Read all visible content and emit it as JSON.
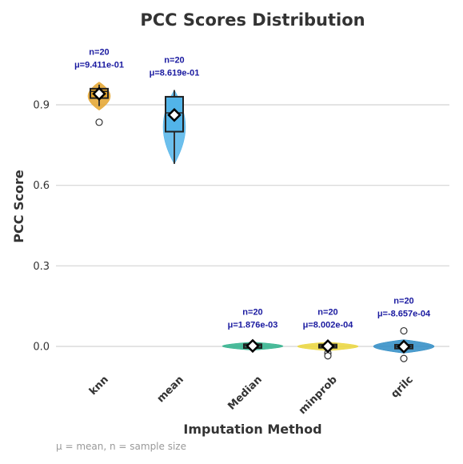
{
  "chart_data": {
    "type": "violin-box",
    "title": "PCC Scores Distribution",
    "xlabel": "Imputation Method",
    "ylabel": "PCC Score",
    "ylim": [
      -0.06,
      1.0
    ],
    "yticks": [
      0.0,
      0.3,
      0.6,
      0.9
    ],
    "ytick_labels": [
      "0.0",
      "0.3",
      "0.6",
      "0.9"
    ],
    "grid": "horizontal",
    "categories": [
      "knn",
      "mean",
      "Median",
      "minprob",
      "qrilc"
    ],
    "series": [
      {
        "category": "knn",
        "color": "#E4A32B",
        "n_label": "n=20",
        "mean_label": "μ=9.411e-01",
        "mean": 0.9411,
        "median": 0.95,
        "q1": 0.925,
        "q3": 0.96,
        "whisker_low": 0.895,
        "whisker_high": 0.975,
        "violin_min": 0.88,
        "violin_max": 0.985,
        "outliers": [
          0.835
        ]
      },
      {
        "category": "mean",
        "color": "#52B4E9",
        "n_label": "n=20",
        "mean_label": "μ=8.619e-01",
        "mean": 0.8619,
        "median": 0.87,
        "q1": 0.8,
        "q3": 0.93,
        "whisker_low": 0.68,
        "whisker_high": 0.955,
        "violin_min": 0.68,
        "violin_max": 0.955,
        "outliers": []
      },
      {
        "category": "Median",
        "color": "#2BB08A",
        "n_label": "n=20",
        "mean_label": "μ=1.876e-03",
        "mean": 0.001876,
        "median": 0.002,
        "q1": -0.006,
        "q3": 0.008,
        "whisker_low": -0.01,
        "whisker_high": 0.012,
        "violin_min": -0.014,
        "violin_max": 0.016,
        "outliers": []
      },
      {
        "category": "minprob",
        "color": "#EBD63A",
        "n_label": "n=20",
        "mean_label": "μ=8.002e-04",
        "mean": 0.0008,
        "median": 0.001,
        "q1": -0.005,
        "q3": 0.007,
        "whisker_low": -0.012,
        "whisker_high": 0.012,
        "violin_min": -0.016,
        "violin_max": 0.016,
        "outliers": [
          -0.025,
          -0.035
        ]
      },
      {
        "category": "qrilc",
        "color": "#2D8BC4",
        "n_label": "n=20",
        "mean_label": "μ=-8.657e-04",
        "mean": -0.000866,
        "median": -0.001,
        "q1": -0.008,
        "q3": 0.006,
        "whisker_low": -0.015,
        "whisker_high": 0.015,
        "violin_min": -0.025,
        "violin_max": 0.025,
        "outliers": [
          0.058,
          -0.045
        ]
      }
    ],
    "footnote": "μ = mean, n = sample size"
  }
}
